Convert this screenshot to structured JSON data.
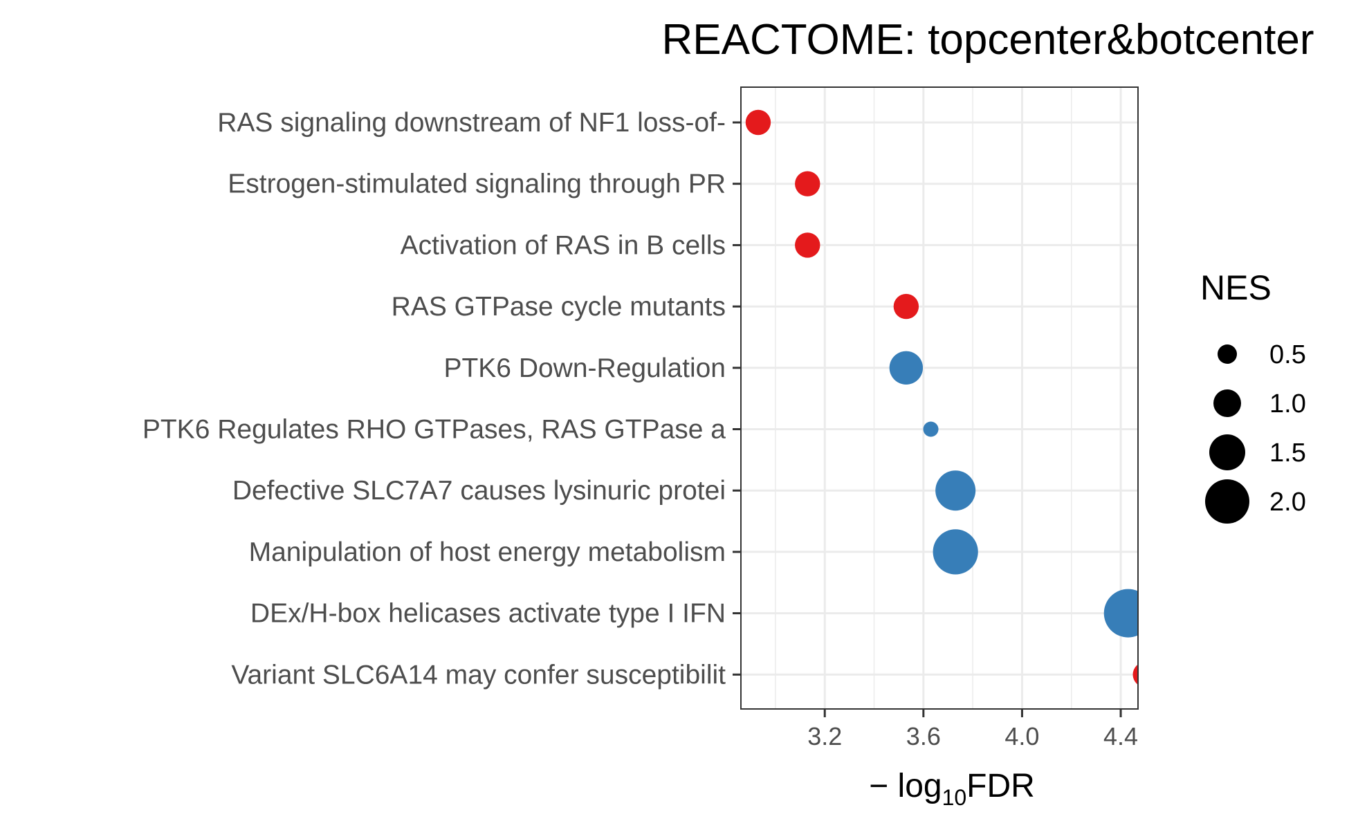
{
  "chart_data": {
    "type": "scatter",
    "title": "REACTOME: topcenter&botcenter",
    "xlabel": {
      "prefix": "− log",
      "subscript": "10",
      "suffix": "FDR"
    },
    "x_ticks": [
      3.2,
      3.6,
      4.0,
      4.4
    ],
    "x_tick_labels": [
      "3.2",
      "3.6",
      "4.0",
      "4.4"
    ],
    "xlim": [
      2.86,
      4.47
    ],
    "grid": true,
    "categories": [
      "RAS signaling downstream of NF1 loss-of-",
      "Estrogen-stimulated signaling through PR",
      "Activation of RAS in B cells",
      "RAS GTPase cycle mutants",
      "PTK6 Down-Regulation",
      "PTK6 Regulates RHO GTPases, RAS GTPase a",
      "Defective SLC7A7 causes lysinuric protei",
      "Manipulation of host energy metabolism",
      "DEx/H-box helicases activate type I IFN ",
      "Variant SLC6A14 may confer susceptibilit"
    ],
    "points": [
      {
        "term": "RAS signaling downstream of NF1 loss-of-",
        "x": 2.93,
        "nes": 0.85,
        "color": "#E41A1C"
      },
      {
        "term": "Estrogen-stimulated signaling through PR",
        "x": 3.13,
        "nes": 0.85,
        "color": "#E41A1C"
      },
      {
        "term": "Activation of RAS in B cells",
        "x": 3.13,
        "nes": 0.85,
        "color": "#E41A1C"
      },
      {
        "term": "RAS GTPase cycle mutants",
        "x": 3.53,
        "nes": 0.85,
        "color": "#E41A1C"
      },
      {
        "term": "PTK6 Down-Regulation",
        "x": 3.53,
        "nes": 1.35,
        "color": "#377EB8"
      },
      {
        "term": "PTK6 Regulates RHO GTPases, RAS GTPase a",
        "x": 3.63,
        "nes": 0.25,
        "color": "#377EB8"
      },
      {
        "term": "Defective SLC7A7 causes lysinuric protei",
        "x": 3.73,
        "nes": 1.75,
        "color": "#377EB8"
      },
      {
        "term": "Manipulation of host energy metabolism",
        "x": 3.73,
        "nes": 2.05,
        "color": "#377EB8"
      },
      {
        "term": "DEx/H-box helicases activate type I IFN ",
        "x": 4.43,
        "nes": 2.25,
        "color": "#377EB8"
      },
      {
        "term": "Variant SLC6A14 may confer susceptibilit",
        "x": 4.5,
        "nes": 0.85,
        "color": "#E41A1C"
      }
    ],
    "legend": {
      "title": "NES",
      "placement": "right",
      "entries": [
        {
          "label": "0.5",
          "nes": 0.5
        },
        {
          "label": "1.0",
          "nes": 1.0
        },
        {
          "label": "1.5",
          "nes": 1.5
        },
        {
          "label": "2.0",
          "nes": 2.0
        }
      ]
    },
    "colors": {
      "up": "#E41A1C",
      "down": "#377EB8",
      "grid": "#EBEBEB",
      "panel_border": "#333333",
      "tick_text": "#4d4d4d"
    }
  }
}
